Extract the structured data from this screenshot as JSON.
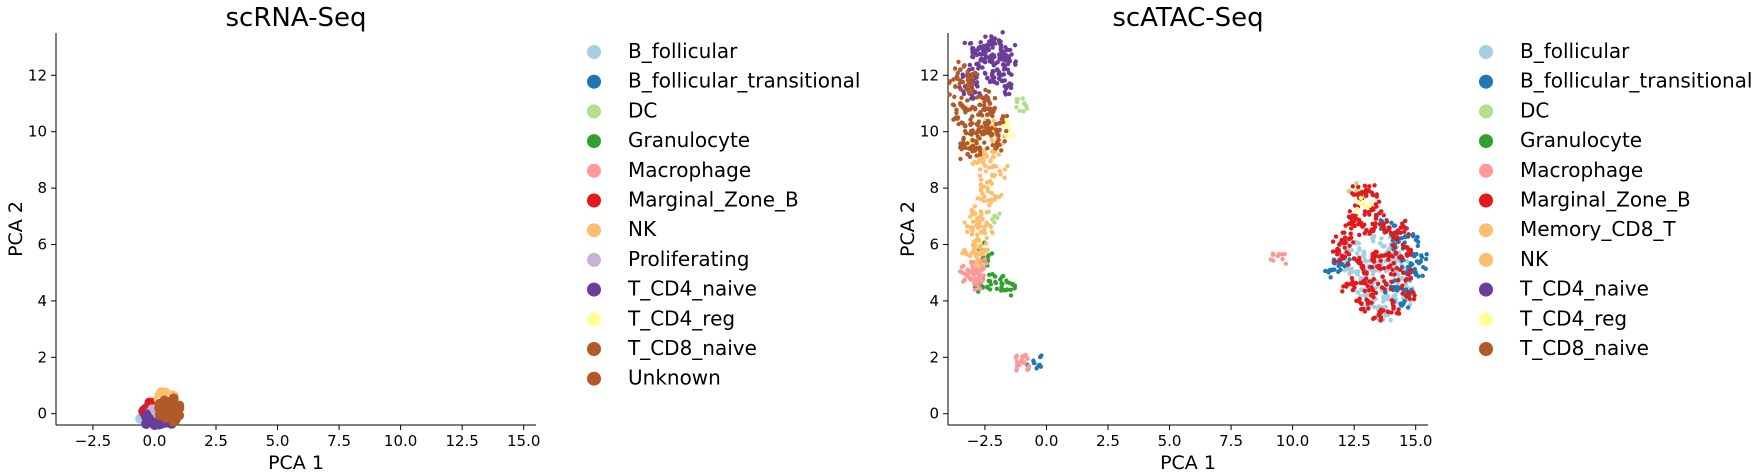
{
  "chart_data": [
    {
      "type": "scatter",
      "title": "scRNA-Seq",
      "xlabel": "PCA 1",
      "ylabel": "PCA 2",
      "xlim": [
        -4.0,
        15.5
      ],
      "ylim": [
        -0.4,
        13.5
      ],
      "xticks": [
        "−2.5",
        "0.0",
        "2.5",
        "5.0",
        "7.5",
        "10.0",
        "12.5",
        "15.0"
      ],
      "xtick_values": [
        -2.5,
        0,
        2.5,
        5,
        7.5,
        10,
        12.5,
        15
      ],
      "yticks": [
        "0",
        "2",
        "4",
        "6",
        "8",
        "10",
        "12"
      ],
      "ytick_values": [
        0,
        2,
        4,
        6,
        8,
        10,
        12
      ],
      "grid": false,
      "legend_position": "right",
      "series": [
        {
          "name": "B_follicular",
          "color": "#a6cee3",
          "points": [
            [
              -0.3,
              0.0
            ],
            [
              -0.2,
              0.1
            ],
            [
              -0.1,
              -0.05
            ],
            [
              0.0,
              0.05
            ]
          ]
        },
        {
          "name": "B_follicular_transitional",
          "color": "#1f78b4",
          "points": [
            [
              -0.35,
              0.05
            ],
            [
              -0.25,
              -0.1
            ],
            [
              0.1,
              -0.15
            ]
          ]
        },
        {
          "name": "DC",
          "color": "#b2df8a",
          "points": [
            [
              0.2,
              0.15
            ]
          ]
        },
        {
          "name": "Granulocyte",
          "color": "#33a02c",
          "points": [
            [
              0.3,
              0.05
            ]
          ]
        },
        {
          "name": "Macrophage",
          "color": "#fb9a99",
          "points": [
            [
              0.1,
              0.2
            ],
            [
              0.3,
              0.25
            ]
          ]
        },
        {
          "name": "Marginal_Zone_B",
          "color": "#e31a1c",
          "points": [
            [
              -0.2,
              0.2
            ],
            [
              -0.05,
              0.35
            ],
            [
              0.1,
              0.3
            ],
            [
              -0.15,
              -0.1
            ]
          ]
        },
        {
          "name": "NK",
          "color": "#fdbf6f",
          "points": [
            [
              0.3,
              0.55
            ],
            [
              0.4,
              0.65
            ],
            [
              0.45,
              0.45
            ],
            [
              0.5,
              0.6
            ]
          ]
        },
        {
          "name": "Proliferating",
          "color": "#cab2d6",
          "points": [
            [
              0.0,
              -0.1
            ],
            [
              0.2,
              -0.05
            ]
          ]
        },
        {
          "name": "T_CD4_naive",
          "color": "#6a3d9a",
          "points": [
            [
              0.35,
              -0.2
            ],
            [
              0.5,
              -0.15
            ],
            [
              -0.25,
              -0.2
            ]
          ]
        },
        {
          "name": "T_CD4_reg",
          "color": "#ffff99",
          "points": [
            [
              0.4,
              0.3
            ]
          ]
        },
        {
          "name": "T_CD8_naive",
          "color": "#b15928",
          "points": [
            [
              0.4,
              0.1
            ],
            [
              0.5,
              0.2
            ],
            [
              0.6,
              0.0
            ],
            [
              0.7,
              0.25
            ],
            [
              0.55,
              0.35
            ],
            [
              0.65,
              -0.1
            ],
            [
              0.75,
              0.1
            ],
            [
              0.45,
              0.0
            ]
          ]
        },
        {
          "name": "Unknown",
          "color": "#b15928",
          "points": [
            [
              0.6,
              0.15
            ],
            [
              0.7,
              -0.05
            ]
          ]
        }
      ]
    },
    {
      "type": "scatter",
      "title": "scATAC-Seq",
      "xlabel": "PCA 1",
      "ylabel": "PCA 2",
      "xlim": [
        -4.0,
        15.5
      ],
      "ylim": [
        -0.4,
        13.5
      ],
      "xticks": [
        "−2.5",
        "0.0",
        "2.5",
        "5.0",
        "7.5",
        "10.0",
        "12.5",
        "15.0"
      ],
      "xtick_values": [
        -2.5,
        0,
        2.5,
        5,
        7.5,
        10,
        12.5,
        15
      ],
      "yticks": [
        "0",
        "2",
        "4",
        "6",
        "8",
        "10",
        "12"
      ],
      "ytick_values": [
        0,
        2,
        4,
        6,
        8,
        10,
        12
      ],
      "grid": false,
      "legend_position": "right",
      "series": [
        {
          "name": "B_follicular",
          "color": "#a6cee3",
          "points": [
            [
              13.6,
              5.3
            ],
            [
              13.2,
              4.6
            ],
            [
              14.1,
              4.9
            ],
            [
              12.9,
              5.6
            ],
            [
              13.8,
              4.2
            ],
            [
              14.4,
              5.5
            ],
            [
              13.0,
              4.0
            ],
            [
              13.5,
              3.8
            ],
            [
              14.0,
              6.0
            ],
            [
              12.6,
              5.0
            ],
            [
              13.3,
              6.3
            ],
            [
              14.6,
              4.6
            ],
            [
              12.4,
              5.8
            ],
            [
              13.7,
              3.6
            ],
            [
              14.2,
              5.2
            ],
            [
              12.8,
              4.4
            ],
            [
              13.9,
              5.8
            ],
            [
              13.1,
              5.2
            ],
            [
              14.5,
              4.1
            ],
            [
              12.2,
              5.2
            ]
          ]
        },
        {
          "name": "B_follicular_transitional",
          "color": "#1f78b4",
          "points": [
            [
              14.3,
              6.1
            ],
            [
              14.8,
              5.7
            ],
            [
              15.0,
              5.0
            ],
            [
              14.6,
              4.4
            ],
            [
              14.9,
              6.3
            ],
            [
              13.9,
              6.6
            ],
            [
              14.4,
              3.9
            ],
            [
              12.0,
              5.3
            ],
            [
              11.6,
              5.1
            ],
            [
              15.2,
              5.4
            ],
            [
              -0.5,
              1.8
            ],
            [
              14.7,
              5.2
            ],
            [
              14.0,
              4.5
            ]
          ]
        },
        {
          "name": "DC",
          "color": "#b2df8a",
          "points": [
            [
              -0.9,
              11.0
            ],
            [
              -2.2,
              6.9
            ],
            [
              12.6,
              7.9
            ]
          ]
        },
        {
          "name": "Granulocyte",
          "color": "#33a02c",
          "points": [
            [
              -2.5,
              5.8
            ],
            [
              -2.3,
              4.7
            ],
            [
              -1.6,
              4.4
            ],
            [
              -2.6,
              4.5
            ],
            [
              -2.4,
              5.4
            ],
            [
              -1.8,
              4.6
            ]
          ]
        },
        {
          "name": "Macrophage",
          "color": "#fb9a99",
          "points": [
            [
              -3.0,
              5.2
            ],
            [
              -2.8,
              5.0
            ],
            [
              -3.1,
              4.8
            ],
            [
              -2.7,
              5.3
            ],
            [
              -2.9,
              4.6
            ],
            [
              -1.0,
              1.9
            ],
            [
              -0.9,
              1.8
            ],
            [
              9.4,
              5.6
            ],
            [
              -3.2,
              5.1
            ]
          ]
        },
        {
          "name": "Marginal_Zone_B",
          "color": "#e31a1c",
          "points": [
            [
              12.8,
              7.6
            ],
            [
              13.2,
              7.3
            ],
            [
              12.6,
              6.9
            ],
            [
              13.4,
              7.0
            ],
            [
              13.0,
              6.5
            ],
            [
              12.3,
              6.2
            ],
            [
              12.0,
              5.6
            ],
            [
              12.5,
              5.5
            ],
            [
              13.0,
              5.0
            ],
            [
              13.6,
              5.6
            ],
            [
              14.2,
              5.7
            ],
            [
              14.5,
              5.0
            ],
            [
              13.8,
              4.6
            ],
            [
              13.2,
              4.2
            ],
            [
              12.8,
              3.9
            ],
            [
              13.5,
              3.5
            ],
            [
              14.1,
              3.8
            ],
            [
              14.7,
              4.3
            ],
            [
              12.2,
              4.6
            ],
            [
              12.7,
              7.8
            ],
            [
              13.1,
              7.9
            ],
            [
              13.6,
              6.7
            ],
            [
              14.0,
              6.4
            ],
            [
              12.4,
              6.8
            ],
            [
              11.9,
              6.0
            ],
            [
              13.9,
              5.2
            ],
            [
              14.8,
              5.8
            ],
            [
              13.3,
              5.4
            ],
            [
              12.9,
              4.7
            ],
            [
              14.4,
              6.6
            ]
          ]
        },
        {
          "name": "Memory_CD8_T",
          "color": "#fdbf6f",
          "points": [
            [
              -2.8,
              6.2
            ],
            [
              -3.0,
              6.6
            ],
            [
              -2.6,
              6.9
            ],
            [
              -2.9,
              7.1
            ],
            [
              -2.7,
              5.9
            ],
            [
              -3.1,
              5.6
            ],
            [
              -2.5,
              6.4
            ],
            [
              -2.8,
              5.5
            ]
          ]
        },
        {
          "name": "NK",
          "color": "#fdbf6f",
          "points": [
            [
              -2.4,
              8.2
            ],
            [
              -2.5,
              8.8
            ],
            [
              -2.2,
              9.3
            ],
            [
              -2.6,
              7.8
            ],
            [
              -2.0,
              9.8
            ],
            [
              -2.3,
              10.2
            ],
            [
              -1.9,
              8.6
            ],
            [
              -2.7,
              9.0
            ],
            [
              -2.1,
              7.6
            ]
          ]
        },
        {
          "name": "T_CD4_naive",
          "color": "#6a3d9a",
          "points": [
            [
              -2.8,
              12.4
            ],
            [
              -2.5,
              12.8
            ],
            [
              -2.2,
              13.1
            ],
            [
              -1.9,
              12.6
            ],
            [
              -1.6,
              12.9
            ],
            [
              -2.0,
              12.2
            ],
            [
              -2.4,
              11.9
            ],
            [
              -1.7,
              12.3
            ],
            [
              -3.1,
              12.0
            ],
            [
              -2.7,
              13.0
            ],
            [
              -1.5,
              12.5
            ],
            [
              -2.1,
              13.3
            ],
            [
              -3.3,
              11.6
            ],
            [
              -2.9,
              11.4
            ],
            [
              -1.8,
              11.8
            ],
            [
              -2.3,
              12.5
            ],
            [
              -3.0,
              12.9
            ],
            [
              -1.6,
              11.6
            ]
          ]
        },
        {
          "name": "T_CD4_reg",
          "color": "#ffff99",
          "points": [
            [
              -1.5,
              10.1
            ],
            [
              -2.8,
              9.6
            ],
            [
              12.9,
              7.4
            ]
          ]
        },
        {
          "name": "T_CD8_naive",
          "color": "#b15928",
          "points": [
            [
              -3.5,
              11.0
            ],
            [
              -3.2,
              11.5
            ],
            [
              -2.9,
              10.8
            ],
            [
              -3.6,
              10.5
            ],
            [
              -2.6,
              11.2
            ],
            [
              -3.3,
              10.2
            ],
            [
              -2.8,
              10.0
            ],
            [
              -2.4,
              10.6
            ],
            [
              -3.0,
              9.7
            ],
            [
              -2.2,
              9.9
            ],
            [
              -3.4,
              9.5
            ],
            [
              -2.7,
              9.4
            ],
            [
              -1.9,
              10.3
            ],
            [
              -3.7,
              11.6
            ],
            [
              -3.0,
              11.9
            ],
            [
              -2.5,
              10.3
            ],
            [
              -2.0,
              9.6
            ],
            [
              -3.2,
              9.2
            ],
            [
              -2.3,
              11.0
            ],
            [
              -3.5,
              12.2
            ]
          ]
        }
      ]
    }
  ]
}
